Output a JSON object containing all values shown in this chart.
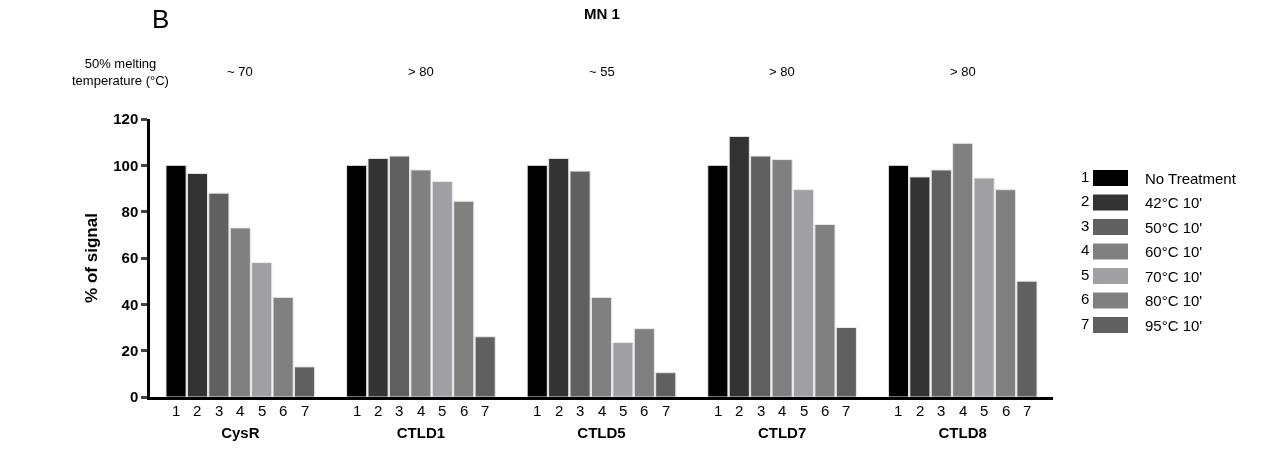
{
  "chart_data": {
    "type": "bar",
    "title": "MN 1",
    "ylabel": "% of signal",
    "categories": [
      "CysR",
      "CTLD1",
      "CTLD5",
      "CTLD7",
      "CTLD8"
    ],
    "series": [
      {
        "name": "No Treatment",
        "color": "#000000",
        "values": [
          100,
          100,
          100,
          100,
          100
        ]
      },
      {
        "name": "42°C 10'",
        "color": "#333333",
        "values": [
          96.5,
          103,
          103,
          112.5,
          95
        ]
      },
      {
        "name": "50°C 10'",
        "color": "#606060",
        "values": [
          88,
          104,
          97.5,
          104,
          98
        ]
      },
      {
        "name": "60°C 10'",
        "color": "#808080",
        "values": [
          73,
          98,
          43,
          102.5,
          109.5
        ]
      },
      {
        "name": "70°C 10'",
        "color": "#a0a0a4",
        "values": [
          58,
          93,
          23.5,
          89.5,
          94.5
        ]
      },
      {
        "name": "80°C 10'",
        "color": "#808080",
        "values": [
          43,
          84.5,
          29.5,
          74.5,
          89.5
        ]
      },
      {
        "name": "95°C 10'",
        "color": "#606060",
        "values": [
          13,
          26,
          10.5,
          30,
          50
        ]
      }
    ],
    "annotations": [
      "B",
      "50% melting temperature (°C)",
      "~ 70",
      "> 80",
      "~ 55",
      "> 80",
      "> 80",
      "1",
      "2",
      "3",
      "4",
      "5",
      "6",
      "7"
    ],
    "ylim": [
      0,
      120
    ],
    "yticks": [
      0,
      20,
      40,
      60,
      80,
      100,
      120
    ],
    "legend": "right"
  }
}
